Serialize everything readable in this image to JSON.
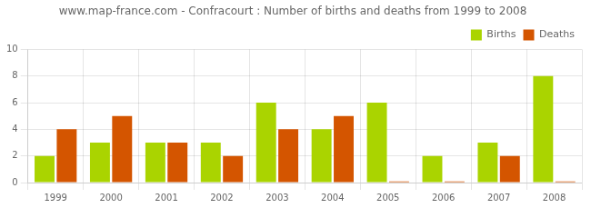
{
  "chart_data": {
    "type": "bar",
    "title": "www.map-france.com - Confracourt : Number of births and deaths from 1999 to 2008",
    "categories": [
      "1999",
      "2000",
      "2001",
      "2002",
      "2003",
      "2004",
      "2005",
      "2006",
      "2007",
      "2008"
    ],
    "series": [
      {
        "name": "Births",
        "color": "#aad400",
        "values": [
          2,
          3,
          3,
          3,
          6,
          4,
          6,
          2,
          3,
          8
        ]
      },
      {
        "name": "Deaths",
        "color": "#d45500",
        "values": [
          4,
          5,
          3,
          2,
          4,
          5,
          0.08,
          0.08,
          2,
          0.08
        ]
      }
    ],
    "ylim": [
      0,
      10
    ],
    "yticks": [
      0,
      2,
      4,
      6,
      8,
      10
    ],
    "grid": true,
    "legend": "upper right"
  }
}
